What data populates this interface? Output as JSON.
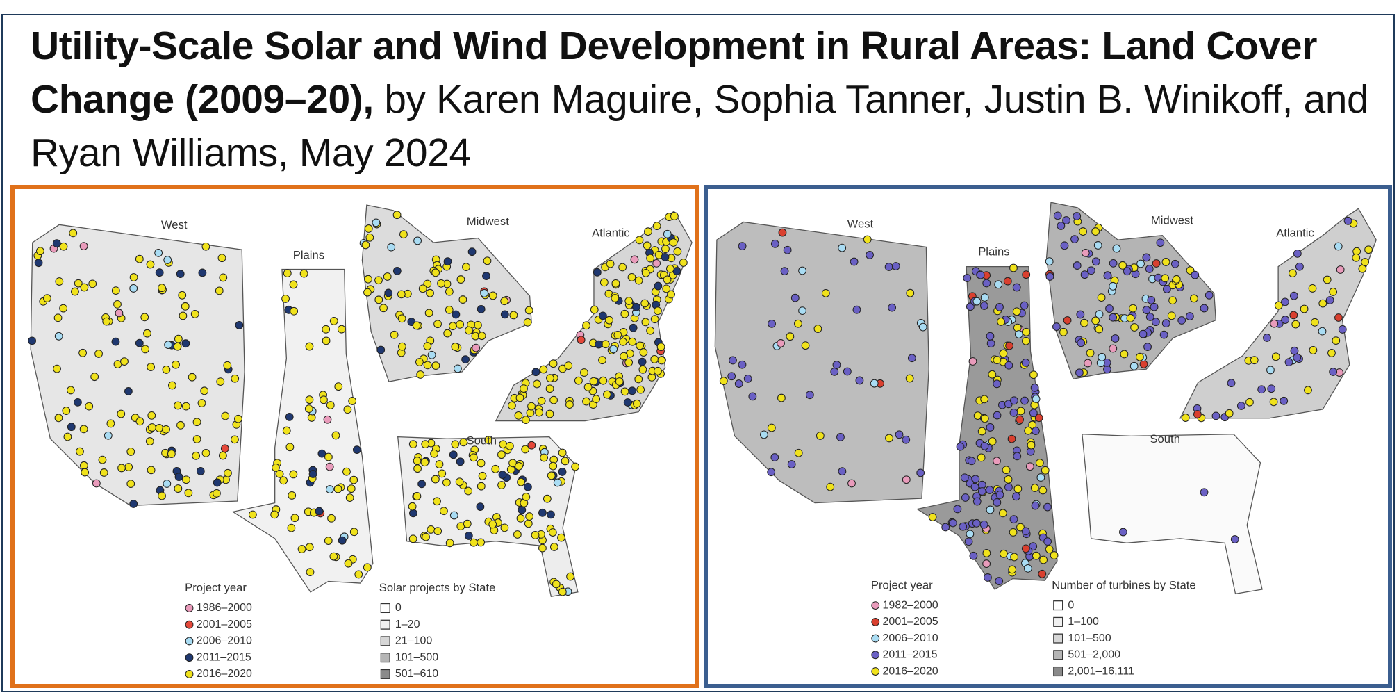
{
  "title": {
    "bold": "Utility-Scale Solar and Wind Development in Rural Areas: Land Cover Change (2009–20),",
    "rest": " by Karen Maguire, Sophia Tanner, Justin B. Winikoff, and Ryan Williams, May 2024"
  },
  "panels": [
    {
      "regions": [
        "West",
        "Plains",
        "Midwest",
        "Atlantic",
        "South"
      ],
      "legend_title": "Project year",
      "years": [
        "1986–2000",
        "2001–2005",
        "2006–2010",
        "2011–2015",
        "2016–2020"
      ],
      "year_colors": [
        "#e99bbb",
        "#e4483a",
        "#a9dcf3",
        "#1f3870",
        "#f0e21c"
      ],
      "shading_title": "Solar projects by State",
      "shading": [
        "0",
        "1–20",
        "21–100",
        "101–500",
        "501–610"
      ]
    },
    {
      "regions": [
        "West",
        "Plains",
        "Midwest",
        "Atlantic",
        "South"
      ],
      "legend_title": "Project year",
      "years": [
        "1982–2000",
        "2001–2005",
        "2006–2010",
        "2011–2015",
        "2016–2020"
      ],
      "year_colors": [
        "#e99bbb",
        "#d9402f",
        "#a9dcf3",
        "#6a60c4",
        "#f0e21c"
      ],
      "shading_title": "Number of turbines by State",
      "shading": [
        "0",
        "1–100",
        "101–500",
        "501–2,000",
        "2,001–16,111"
      ]
    }
  ]
}
